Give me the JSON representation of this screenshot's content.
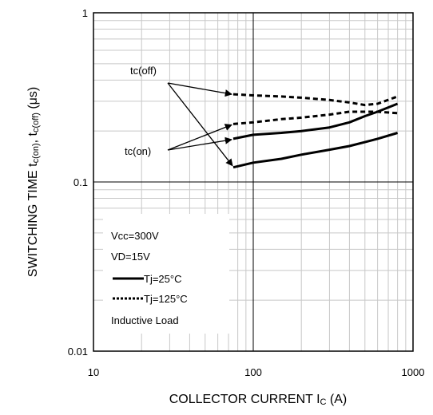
{
  "chart_data": {
    "type": "line",
    "title": "",
    "xlabel": {
      "main": "COLLECTOR CURRENT I",
      "sub": "C",
      "tail": " (A)"
    },
    "ylabel": {
      "p1": "SWITCHING TIME t",
      "s1": "c(on)",
      "p2": ", t",
      "s2": "c(off)",
      "p3": " (μs)"
    },
    "x_scale": "log",
    "y_scale": "log",
    "xlim": [
      10,
      1000
    ],
    "ylim": [
      0.01,
      1
    ],
    "x_ticks": [
      {
        "value": 10,
        "label": "10"
      },
      {
        "value": 100,
        "label": "100"
      },
      {
        "value": 1000,
        "label": "1000"
      }
    ],
    "y_ticks": [
      {
        "value": 0.01,
        "label": "0.01"
      },
      {
        "value": 0.1,
        "label": "0.1"
      },
      {
        "value": 1,
        "label": "1"
      }
    ],
    "grid": true,
    "series": [
      {
        "group": "tc(off)",
        "condition": "Tj=25°C",
        "style": "solid",
        "x": [
          75,
          100,
          150,
          200,
          300,
          400,
          500,
          600,
          800
        ],
        "y": [
          0.18,
          0.19,
          0.195,
          0.2,
          0.21,
          0.225,
          0.245,
          0.26,
          0.29
        ]
      },
      {
        "group": "tc(off)",
        "condition": "Tj=125°C",
        "style": "dashed",
        "x": [
          75,
          100,
          150,
          200,
          300,
          400,
          500,
          600,
          800
        ],
        "y": [
          0.33,
          0.325,
          0.32,
          0.315,
          0.305,
          0.295,
          0.285,
          0.29,
          0.32
        ]
      },
      {
        "group": "tc(on)",
        "condition": "Tj=25°C",
        "style": "solid",
        "x": [
          75,
          100,
          150,
          200,
          300,
          400,
          500,
          600,
          800
        ],
        "y": [
          0.122,
          0.13,
          0.137,
          0.145,
          0.155,
          0.163,
          0.172,
          0.18,
          0.195
        ]
      },
      {
        "group": "tc(on)",
        "condition": "Tj=125°C",
        "style": "dashed",
        "x": [
          75,
          100,
          150,
          200,
          300,
          400,
          500,
          600,
          800
        ],
        "y": [
          0.22,
          0.225,
          0.235,
          0.24,
          0.25,
          0.26,
          0.26,
          0.26,
          0.255
        ]
      }
    ],
    "annotations": {
      "tc_off": "tc(off)",
      "tc_on": "tc(on)"
    },
    "conditions_box": {
      "line1": "Vcc=300V",
      "line2": "VD=15V",
      "legend": [
        {
          "label": "Tj=25°C",
          "style": "solid"
        },
        {
          "label": "Tj=125°C",
          "style": "dashed"
        }
      ],
      "line_last": "Inductive Load"
    }
  }
}
